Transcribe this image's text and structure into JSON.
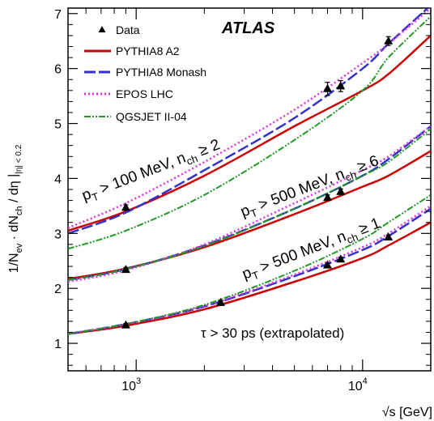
{
  "chart_data": {
    "type": "line",
    "ylabel": {
      "main": "1/N",
      "sub1": "ev",
      "mid": " · dN",
      "sub2": "ch",
      "tail": " / dη",
      "bar_sub": "|η| < 0.2"
    },
    "xlabel": "√s [GeV]",
    "xscale": "log",
    "xlim": [
      500,
      20000
    ],
    "ylim": [
      0.5,
      7.1
    ],
    "x_ticks": [
      {
        "value": 1000,
        "label": "10",
        "exp": "3"
      },
      {
        "value": 10000,
        "label": "10",
        "exp": "4"
      }
    ],
    "y_ticks": [
      1,
      2,
      3,
      4,
      5,
      6,
      7
    ],
    "experiment": "ATLAS",
    "note": "τ > 30 ps (extrapolated)",
    "legend": {
      "placement": "top-left",
      "entries": [
        {
          "label": "Data",
          "marker": "triangle",
          "color": "#000000"
        },
        {
          "label": "PYTHIA8 A2",
          "style": "solid",
          "color": "#cc0000"
        },
        {
          "label": "PYTHIA8 Monash",
          "style": "longdash",
          "color": "#3333cc"
        },
        {
          "label": "EPOS LHC",
          "style": "dotted",
          "color": "#e033e0"
        },
        {
          "label": "QGSJET II-04",
          "style": "dashdotdot",
          "color": "#229922"
        }
      ]
    },
    "phase_spaces": [
      {
        "label": {
          "pre": "p",
          "sub": "T",
          "mid": " > 100 MeV, n",
          "sub2": "ch",
          "post": " ≥ 2"
        },
        "data": [
          {
            "x": 900,
            "y": 3.47,
            "err": 0.05
          },
          {
            "x": 7000,
            "y": 5.63,
            "err": 0.12
          },
          {
            "x": 8000,
            "y": 5.68,
            "err": 0.1
          },
          {
            "x": 13000,
            "y": 6.5,
            "err": 0.08
          }
        ],
        "series": [
          {
            "name": "PYTHIA8 A2",
            "x": [
              500,
              900,
              2000,
              5000,
              10000,
              13000,
              20000
            ],
            "y": [
              3.05,
              3.4,
              4.05,
              4.95,
              5.6,
              5.9,
              6.6
            ]
          },
          {
            "name": "PYTHIA8 Monash",
            "x": [
              500,
              900,
              2000,
              5000,
              10000,
              13000,
              20000
            ],
            "y": [
              3.0,
              3.38,
              4.15,
              5.1,
              6.0,
              6.45,
              7.15
            ]
          },
          {
            "name": "EPOS LHC",
            "x": [
              500,
              900,
              2000,
              5000,
              10000,
              13000,
              20000
            ],
            "y": [
              3.1,
              3.55,
              4.3,
              5.25,
              6.1,
              6.45,
              7.1
            ]
          },
          {
            "name": "QGSJET II-04",
            "x": [
              500,
              900,
              2000,
              5000,
              10000,
              13000,
              20000
            ],
            "y": [
              2.72,
              3.05,
              3.7,
              4.7,
              5.6,
              6.2,
              6.95
            ]
          }
        ]
      },
      {
        "label": {
          "pre": "p",
          "sub": "T",
          "mid": " > 500 MeV, n",
          "sub2": "ch",
          "post": " ≥ 6"
        },
        "data": [
          {
            "x": 900,
            "y": 2.34,
            "err": 0.04
          },
          {
            "x": 7000,
            "y": 3.65,
            "err": 0.05
          },
          {
            "x": 8000,
            "y": 3.76,
            "err": 0.05
          }
        ],
        "series": [
          {
            "name": "PYTHIA8 A2",
            "x": [
              500,
              900,
              2000,
              5000,
              10000,
              13000,
              20000
            ],
            "y": [
              2.17,
              2.36,
              2.75,
              3.35,
              3.85,
              4.05,
              4.5
            ]
          },
          {
            "name": "PYTHIA8 Monash",
            "x": [
              500,
              900,
              2000,
              5000,
              10000,
              13000,
              20000
            ],
            "y": [
              2.15,
              2.35,
              2.78,
              3.45,
              4.05,
              4.35,
              4.95
            ]
          },
          {
            "name": "EPOS LHC",
            "x": [
              500,
              900,
              2000,
              5000,
              10000,
              13000,
              20000
            ],
            "y": [
              2.12,
              2.33,
              2.8,
              3.55,
              4.15,
              4.4,
              4.95
            ]
          },
          {
            "name": "QGSJET II-04",
            "x": [
              500,
              900,
              2000,
              5000,
              10000,
              13000,
              20000
            ],
            "y": [
              2.15,
              2.35,
              2.77,
              3.45,
              4.05,
              4.3,
              4.9
            ]
          }
        ]
      },
      {
        "label": {
          "pre": "p",
          "sub": "T",
          "mid": " > 500 MeV, n",
          "sub2": "ch",
          "post": " ≥ 1"
        },
        "data": [
          {
            "x": 900,
            "y": 1.33,
            "err": 0.03
          },
          {
            "x": 2360,
            "y": 1.74,
            "err": 0.03
          },
          {
            "x": 7000,
            "y": 2.42,
            "err": 0.04
          },
          {
            "x": 8000,
            "y": 2.53,
            "err": 0.04
          },
          {
            "x": 13000,
            "y": 2.93,
            "err": 0.04
          }
        ],
        "series": [
          {
            "name": "PYTHIA8 A2",
            "x": [
              500,
              900,
              2000,
              5000,
              10000,
              13000,
              20000
            ],
            "y": [
              1.17,
              1.32,
              1.62,
              2.12,
              2.55,
              2.78,
              3.2
            ]
          },
          {
            "name": "PYTHIA8 Monash",
            "x": [
              500,
              900,
              2000,
              5000,
              10000,
              13000,
              20000
            ],
            "y": [
              1.17,
              1.35,
              1.67,
              2.22,
              2.7,
              2.95,
              3.45
            ]
          },
          {
            "name": "EPOS LHC",
            "x": [
              500,
              900,
              2000,
              5000,
              10000,
              13000,
              20000
            ],
            "y": [
              1.18,
              1.35,
              1.68,
              2.25,
              2.75,
              3.0,
              3.5
            ]
          },
          {
            "name": "QGSJET II-04",
            "x": [
              500,
              900,
              2000,
              5000,
              10000,
              13000,
              20000
            ],
            "y": [
              1.17,
              1.35,
              1.7,
              2.32,
              2.9,
              3.2,
              3.7
            ]
          }
        ]
      }
    ]
  }
}
